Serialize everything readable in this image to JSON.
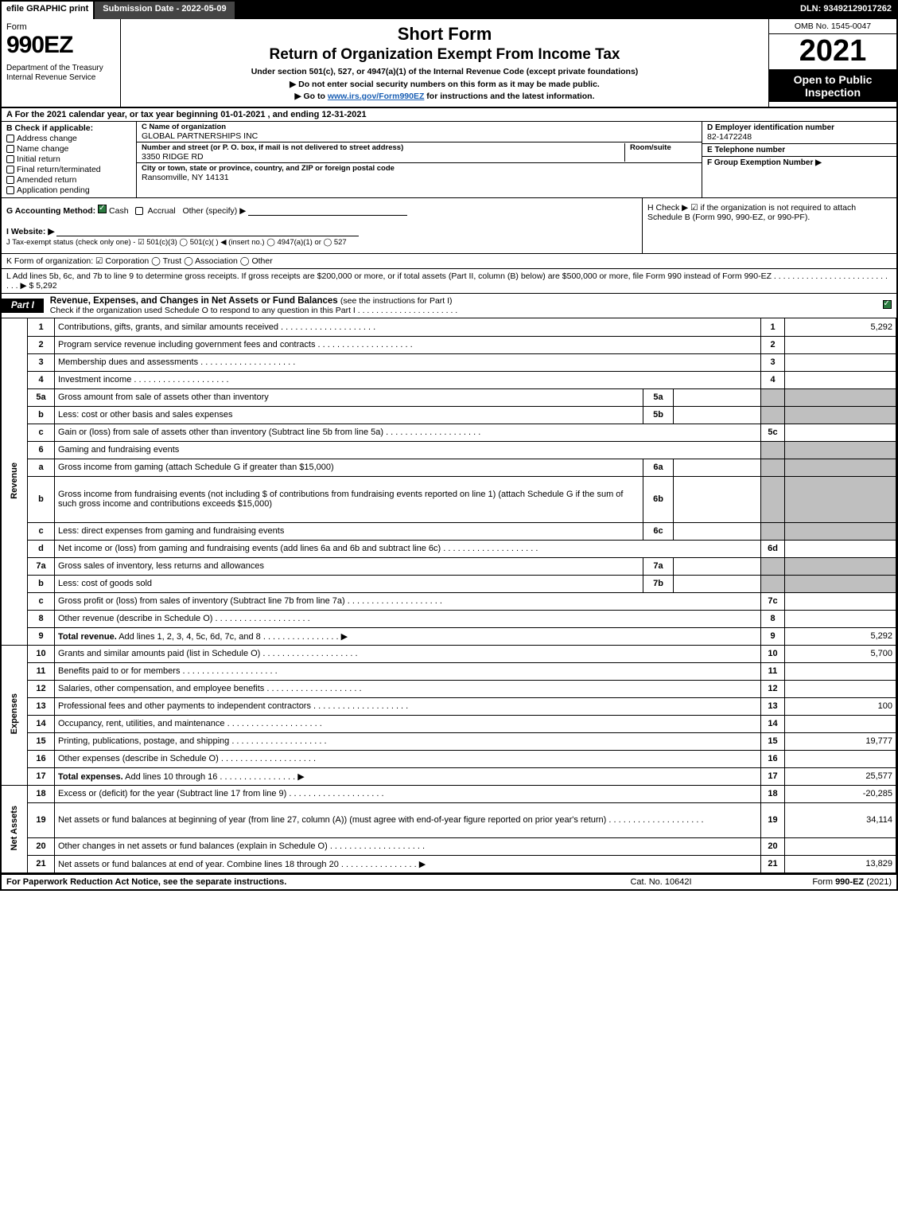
{
  "topbar": {
    "efile": "efile GRAPHIC print",
    "submission": "Submission Date - 2022-05-09",
    "dln": "DLN: 93492129017262"
  },
  "header": {
    "form_word": "Form",
    "form_no": "990EZ",
    "dept": "Department of the Treasury\nInternal Revenue Service",
    "short_form": "Short Form",
    "title_main": "Return of Organization Exempt From Income Tax",
    "under_section": "Under section 501(c), 527, or 4947(a)(1) of the Internal Revenue Code (except private foundations)",
    "instr1": "▶ Do not enter social security numbers on this form as it may be made public.",
    "instr2_pre": "▶ Go to ",
    "instr2_link": "www.irs.gov/Form990EZ",
    "instr2_post": " for instructions and the latest information.",
    "omb": "OMB No. 1545-0047",
    "year": "2021",
    "open_public": "Open to Public Inspection"
  },
  "row_a": "A  For the 2021 calendar year, or tax year beginning 01-01-2021 , and ending 12-31-2021",
  "box_b": {
    "label": "B  Check if applicable:",
    "opts": [
      "Address change",
      "Name change",
      "Initial return",
      "Final return/terminated",
      "Amended return",
      "Application pending"
    ]
  },
  "box_c": {
    "name_lbl": "C Name of organization",
    "name_val": "GLOBAL PARTNERSHIPS INC",
    "street_lbl": "Number and street (or P. O. box, if mail is not delivered to street address)",
    "street_val": "3350 RIDGE RD",
    "room_lbl": "Room/suite",
    "city_lbl": "City or town, state or province, country, and ZIP or foreign postal code",
    "city_val": "Ransomville, NY  14131"
  },
  "box_d": {
    "lbl": "D Employer identification number",
    "val": "82-1472248"
  },
  "box_e": {
    "lbl": "E Telephone number",
    "val": ""
  },
  "box_f": {
    "lbl": "F Group Exemption Number  ▶",
    "val": ""
  },
  "g_line": {
    "prefix": "G Accounting Method:  ",
    "cash": "Cash",
    "accrual": "Accrual",
    "other": "Other (specify) ▶"
  },
  "h_line": "H  Check ▶  ☑  if the organization is not required to attach Schedule B (Form 990, 990-EZ, or 990-PF).",
  "i_line": "I Website: ▶",
  "j_line": "J Tax-exempt status (check only one) -  ☑ 501(c)(3)  ◯ 501(c)(  ) ◀ (insert no.)  ◯ 4947(a)(1) or  ◯ 527",
  "k_line": "K Form of organization:  ☑ Corporation  ◯ Trust  ◯ Association  ◯ Other",
  "l_line_text": "L Add lines 5b, 6c, and 7b to line 9 to determine gross receipts. If gross receipts are $200,000 or more, or if total assets (Part II, column (B) below) are $500,000 or more, file Form 990 instead of Form 990-EZ  .  .  .  .  .  .  .  .  .  .  .  .  .  .  .  .  .  .  .  .  .  .  .  .  .  .  .  .  ▶ $ ",
  "l_value": "5,292",
  "part1": {
    "tab": "Part I",
    "title": "Revenue, Expenses, and Changes in Net Assets or Fund Balances ",
    "title_sub": "(see the instructions for Part I)",
    "check_line": "Check if the organization used Schedule O to respond to any question in this Part I  .  .  .  .  .  .  .  .  .  .  .  .  .  .  .  .  .  .  .  .  .  ."
  },
  "sections": {
    "revenue": "Revenue",
    "expenses": "Expenses",
    "netassets": "Net Assets"
  },
  "lines": [
    {
      "sec": "revenue",
      "no": "1",
      "desc": "Contributions, gifts, grants, and similar amounts received",
      "out": "1",
      "val": "5,292"
    },
    {
      "sec": "revenue",
      "no": "2",
      "desc": "Program service revenue including government fees and contracts",
      "out": "2",
      "val": ""
    },
    {
      "sec": "revenue",
      "no": "3",
      "desc": "Membership dues and assessments",
      "out": "3",
      "val": ""
    },
    {
      "sec": "revenue",
      "no": "4",
      "desc": "Investment income",
      "out": "4",
      "val": ""
    },
    {
      "sec": "revenue",
      "no": "5a",
      "desc": "Gross amount from sale of assets other than inventory",
      "sub": "5a",
      "subval": "",
      "shade": true
    },
    {
      "sec": "revenue",
      "no": "b",
      "desc": "Less: cost or other basis and sales expenses",
      "sub": "5b",
      "subval": "",
      "shade": true
    },
    {
      "sec": "revenue",
      "no": "c",
      "desc": "Gain or (loss) from sale of assets other than inventory (Subtract line 5b from line 5a)",
      "out": "5c",
      "val": ""
    },
    {
      "sec": "revenue",
      "no": "6",
      "desc": "Gaming and fundraising events",
      "shade": true,
      "noout": true
    },
    {
      "sec": "revenue",
      "no": "a",
      "desc": "Gross income from gaming (attach Schedule G if greater than $15,000)",
      "sub": "6a",
      "subval": "",
      "shade": true
    },
    {
      "sec": "revenue",
      "no": "b",
      "desc": "Gross income from fundraising events (not including $                    of contributions from fundraising events reported on line 1) (attach Schedule G if the sum of such gross income and contributions exceeds $15,000)",
      "sub": "6b",
      "subval": "",
      "shade": true,
      "tall": true
    },
    {
      "sec": "revenue",
      "no": "c",
      "desc": "Less: direct expenses from gaming and fundraising events",
      "sub": "6c",
      "subval": "",
      "shade": true
    },
    {
      "sec": "revenue",
      "no": "d",
      "desc": "Net income or (loss) from gaming and fundraising events (add lines 6a and 6b and subtract line 6c)",
      "out": "6d",
      "val": ""
    },
    {
      "sec": "revenue",
      "no": "7a",
      "desc": "Gross sales of inventory, less returns and allowances",
      "sub": "7a",
      "subval": "",
      "shade": true
    },
    {
      "sec": "revenue",
      "no": "b",
      "desc": "Less: cost of goods sold",
      "sub": "7b",
      "subval": "",
      "shade": true
    },
    {
      "sec": "revenue",
      "no": "c",
      "desc": "Gross profit or (loss) from sales of inventory (Subtract line 7b from line 7a)",
      "out": "7c",
      "val": ""
    },
    {
      "sec": "revenue",
      "no": "8",
      "desc": "Other revenue (describe in Schedule O)",
      "out": "8",
      "val": ""
    },
    {
      "sec": "revenue",
      "no": "9",
      "desc": "Total revenue. Add lines 1, 2, 3, 4, 5c, 6d, 7c, and 8",
      "out": "9",
      "val": "5,292",
      "bold": true,
      "arrow": true
    },
    {
      "sec": "expenses",
      "no": "10",
      "desc": "Grants and similar amounts paid (list in Schedule O)",
      "out": "10",
      "val": "5,700"
    },
    {
      "sec": "expenses",
      "no": "11",
      "desc": "Benefits paid to or for members",
      "out": "11",
      "val": ""
    },
    {
      "sec": "expenses",
      "no": "12",
      "desc": "Salaries, other compensation, and employee benefits",
      "out": "12",
      "val": ""
    },
    {
      "sec": "expenses",
      "no": "13",
      "desc": "Professional fees and other payments to independent contractors",
      "out": "13",
      "val": "100"
    },
    {
      "sec": "expenses",
      "no": "14",
      "desc": "Occupancy, rent, utilities, and maintenance",
      "out": "14",
      "val": ""
    },
    {
      "sec": "expenses",
      "no": "15",
      "desc": "Printing, publications, postage, and shipping",
      "out": "15",
      "val": "19,777"
    },
    {
      "sec": "expenses",
      "no": "16",
      "desc": "Other expenses (describe in Schedule O)",
      "out": "16",
      "val": ""
    },
    {
      "sec": "expenses",
      "no": "17",
      "desc": "Total expenses. Add lines 10 through 16",
      "out": "17",
      "val": "25,577",
      "bold": true,
      "arrow": true
    },
    {
      "sec": "netassets",
      "no": "18",
      "desc": "Excess or (deficit) for the year (Subtract line 17 from line 9)",
      "out": "18",
      "val": "-20,285"
    },
    {
      "sec": "netassets",
      "no": "19",
      "desc": "Net assets or fund balances at beginning of year (from line 27, column (A)) (must agree with end-of-year figure reported on prior year's return)",
      "out": "19",
      "val": "34,114",
      "tall": true
    },
    {
      "sec": "netassets",
      "no": "20",
      "desc": "Other changes in net assets or fund balances (explain in Schedule O)",
      "out": "20",
      "val": ""
    },
    {
      "sec": "netassets",
      "no": "21",
      "desc": "Net assets or fund balances at end of year. Combine lines 18 through 20",
      "out": "21",
      "val": "13,829",
      "arrow": true
    }
  ],
  "footer": {
    "left": "For Paperwork Reduction Act Notice, see the separate instructions.",
    "mid": "Cat. No. 10642I",
    "right_pre": "Form ",
    "right_bold": "990-EZ",
    "right_post": " (2021)"
  },
  "colors": {
    "black": "#000000",
    "shade": "#bfbfbf",
    "link": "#1a5fb4",
    "check_green": "#2a7a3f"
  }
}
